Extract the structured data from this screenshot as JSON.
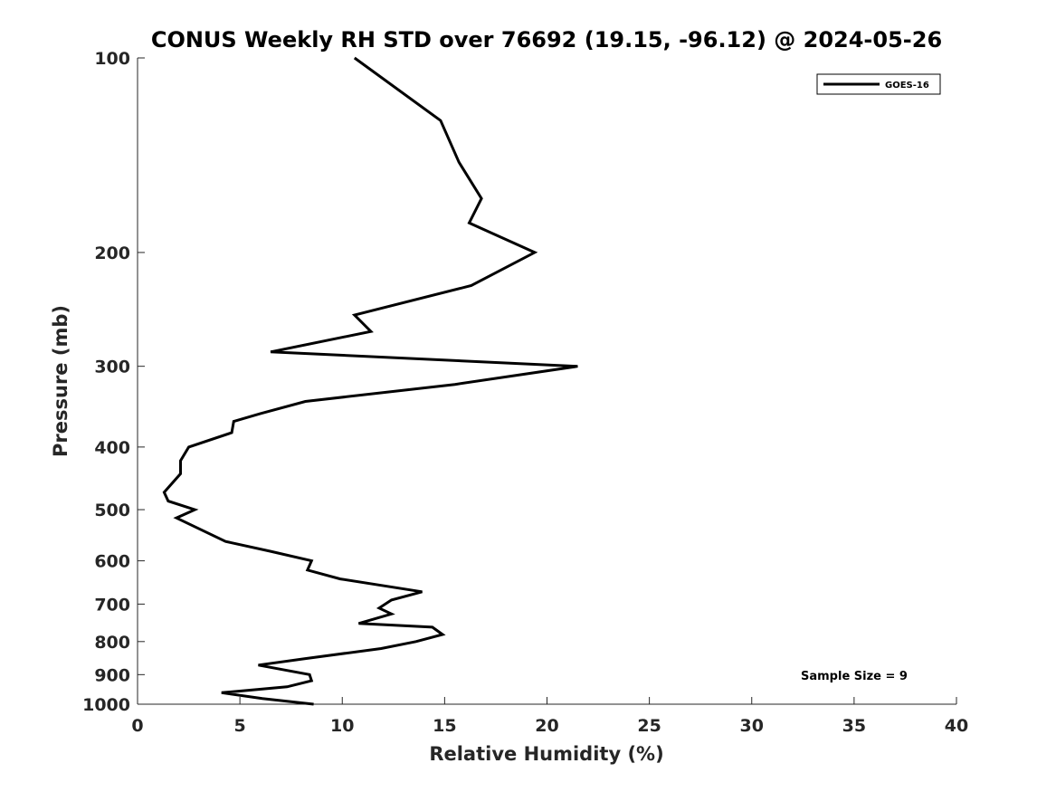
{
  "chart_data": {
    "type": "line",
    "title": "CONUS Weekly RH STD over 76692 (19.15, -96.12) @ 2024-05-26",
    "xlabel": "Relative Humidity (%)",
    "ylabel": "Pressure (mb)",
    "xlim": [
      0,
      40
    ],
    "ylim": [
      1000,
      100
    ],
    "yscale": "log",
    "y_inverted": true,
    "xticks": [
      0,
      5,
      10,
      15,
      20,
      25,
      30,
      35,
      40
    ],
    "yticks": [
      100,
      200,
      300,
      400,
      500,
      600,
      700,
      800,
      900,
      1000
    ],
    "grid": false,
    "legend_position": "top-right",
    "annotation": "Sample Size = 9",
    "series": [
      {
        "name": "GOES-16",
        "color": "#000000",
        "points": [
          [
            10.6,
            100
          ],
          [
            14.8,
            125
          ],
          [
            15.7,
            145
          ],
          [
            16.8,
            165
          ],
          [
            16.2,
            180
          ],
          [
            19.4,
            200
          ],
          [
            16.3,
            225
          ],
          [
            10.6,
            250
          ],
          [
            11.4,
            265
          ],
          [
            6.5,
            285
          ],
          [
            21.5,
            300
          ],
          [
            15.5,
            320
          ],
          [
            8.2,
            340
          ],
          [
            6.0,
            355
          ],
          [
            4.7,
            365
          ],
          [
            4.6,
            380
          ],
          [
            2.5,
            400
          ],
          [
            2.1,
            420
          ],
          [
            2.1,
            440
          ],
          [
            1.3,
            470
          ],
          [
            1.5,
            485
          ],
          [
            2.8,
            500
          ],
          [
            1.9,
            515
          ],
          [
            4.3,
            560
          ],
          [
            6.5,
            580
          ],
          [
            8.5,
            600
          ],
          [
            8.3,
            620
          ],
          [
            9.9,
            640
          ],
          [
            13.9,
            670
          ],
          [
            12.4,
            690
          ],
          [
            11.8,
            710
          ],
          [
            12.4,
            725
          ],
          [
            10.8,
            750
          ],
          [
            14.4,
            760
          ],
          [
            14.9,
            780
          ],
          [
            13.6,
            800
          ],
          [
            11.9,
            820
          ],
          [
            8.2,
            850
          ],
          [
            5.9,
            870
          ],
          [
            8.4,
            900
          ],
          [
            8.5,
            920
          ],
          [
            7.3,
            940
          ],
          [
            4.1,
            960
          ],
          [
            6.1,
            980
          ],
          [
            8.6,
            1000
          ]
        ]
      }
    ]
  }
}
